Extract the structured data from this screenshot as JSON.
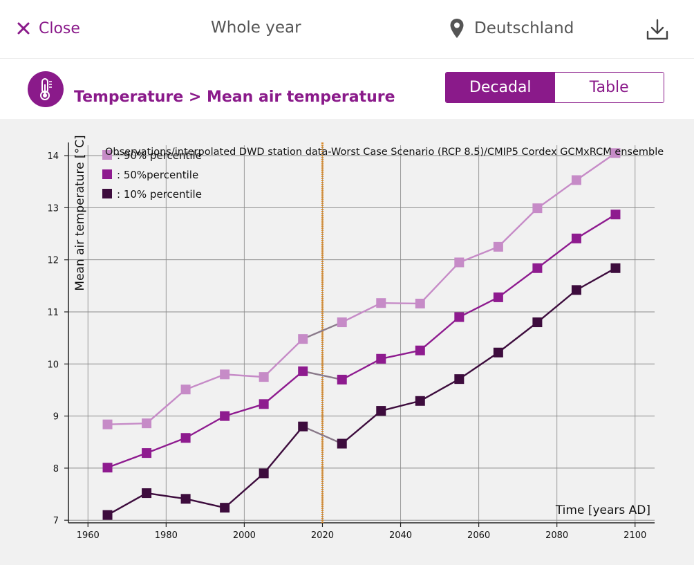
{
  "header": {
    "close_label": "Close",
    "period": "Whole year",
    "location": "Deutschland",
    "icons": {
      "close": "close-icon",
      "location": "location-pin-icon",
      "download": "download-icon"
    }
  },
  "subheader": {
    "title": "Temperature > Mean air temperature",
    "icon": "thermometer-icon",
    "tabs": [
      {
        "label": "Decadal",
        "active": true
      },
      {
        "label": "Table",
        "active": false
      }
    ]
  },
  "colors": {
    "accent": "#8a1a8a",
    "p90": "#c68bc7",
    "p50": "#8e1b8f",
    "p10": "#3d0c3d",
    "divider": "#d98a2a"
  },
  "chart_data": {
    "type": "line",
    "title": "Observations/interpolated DWD station data-Worst Case Scenario (RCP 8.5)/CMIP5 Cordex GCMxRCM ensemble",
    "xlabel": "Time [years AD]",
    "ylabel": "Mean air temperature [°C]",
    "xlim": [
      1955,
      2105
    ],
    "ylim": [
      6.95,
      14.2
    ],
    "xticks": [
      1960,
      1980,
      2000,
      2020,
      2040,
      2060,
      2080,
      2100
    ],
    "yticks": [
      7,
      8,
      9,
      10,
      11,
      12,
      13,
      14
    ],
    "grid": true,
    "legend_position": "top-left",
    "divider_x": 2020,
    "x": [
      1965,
      1975,
      1985,
      1995,
      2005,
      2015,
      2025,
      2035,
      2045,
      2055,
      2065,
      2075,
      2085,
      2095
    ],
    "series": [
      {
        "name": ": 90% percentile",
        "values": [
          8.84,
          8.86,
          9.51,
          9.8,
          9.75,
          10.48,
          10.8,
          11.17,
          11.16,
          11.95,
          12.25,
          12.99,
          13.53,
          14.05
        ]
      },
      {
        "name": ": 50%percentile",
        "values": [
          8.01,
          8.29,
          8.58,
          9.0,
          9.23,
          9.86,
          9.7,
          10.1,
          10.26,
          10.9,
          11.28,
          11.84,
          12.41,
          12.87
        ]
      },
      {
        "name": ": 10% percentile",
        "values": [
          7.1,
          7.52,
          7.41,
          7.24,
          7.9,
          8.8,
          8.47,
          9.1,
          9.29,
          9.71,
          10.22,
          10.8,
          11.42,
          11.84
        ]
      }
    ]
  }
}
